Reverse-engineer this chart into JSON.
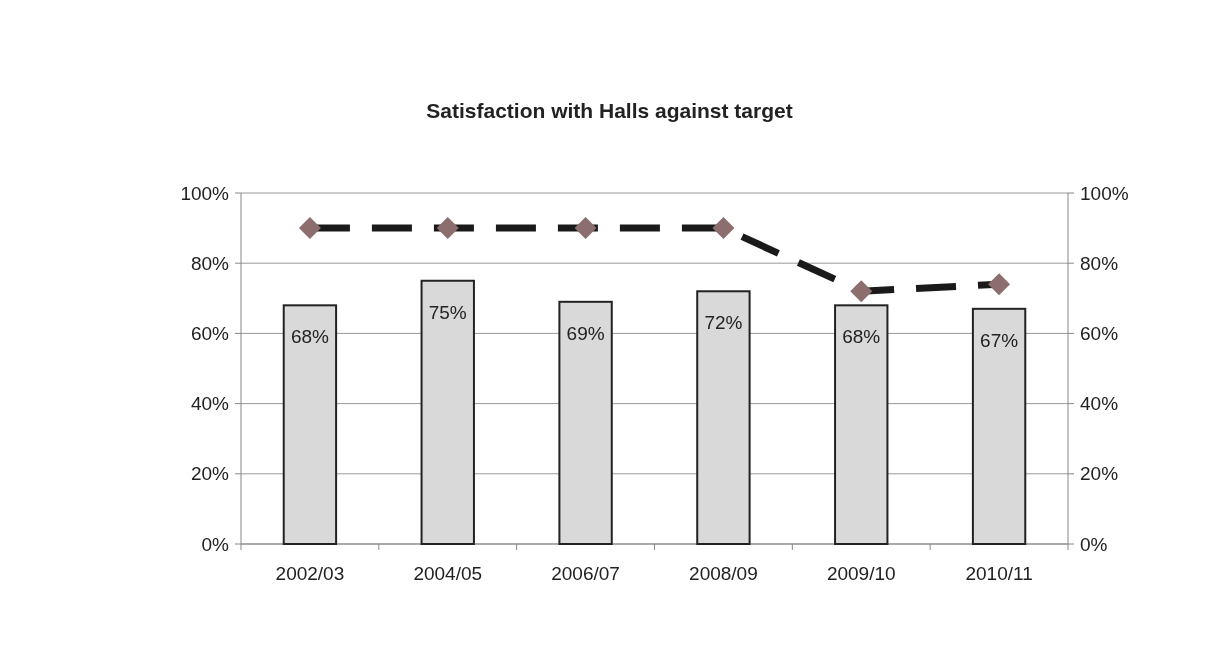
{
  "chart_data": {
    "type": "bar",
    "title": "Satisfaction with Halls against target",
    "categories": [
      "2002/03",
      "2004/05",
      "2006/07",
      "2008/09",
      "2009/10",
      "2010/11"
    ],
    "series": [
      {
        "color": "#d9d9d9",
        "values": [
          68,
          75,
          69,
          72,
          68,
          67
        ],
        "value_labels": [
          "68%",
          "75%",
          "69%",
          "72%",
          "68%",
          "67%"
        ]
      },
      {
        "type": "line",
        "color": "#1a1a1a",
        "values": [
          90,
          90,
          90,
          90,
          72,
          74
        ],
        "marker": "diamond",
        "line_style": "dashed"
      }
    ],
    "ylim": [
      0,
      100
    ],
    "yticks": [
      {
        "value": 0,
        "label": "0%"
      },
      {
        "value": 20,
        "label": "20%"
      },
      {
        "value": 40,
        "label": "40%"
      },
      {
        "value": 60,
        "label": "60%"
      },
      {
        "value": 80,
        "label": "80%"
      },
      {
        "value": 100,
        "label": "100%"
      }
    ],
    "y2lim": [
      0,
      100
    ],
    "y2ticks": [
      {
        "value": 0,
        "label": "0%"
      },
      {
        "value": 20,
        "label": "20%"
      },
      {
        "value": 40,
        "label": "40%"
      },
      {
        "value": 60,
        "label": "60%"
      },
      {
        "value": 80,
        "label": "80%"
      },
      {
        "value": 100,
        "label": "100%"
      }
    ],
    "grid": "y"
  }
}
